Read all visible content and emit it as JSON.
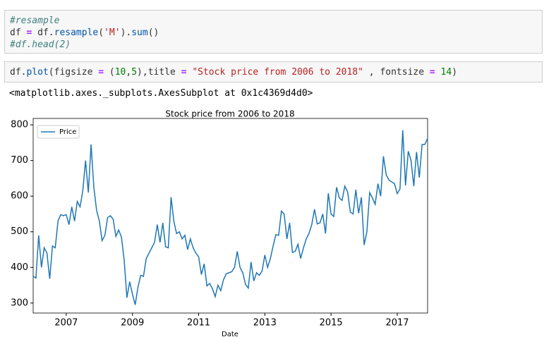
{
  "cells": [
    {
      "lines": [
        [
          {
            "t": "#resample",
            "c": "comment"
          }
        ],
        [
          {
            "t": "df ",
            "c": "plain"
          },
          {
            "t": "=",
            "c": "op"
          },
          {
            "t": " df.",
            "c": "plain"
          },
          {
            "t": "resample",
            "c": "func"
          },
          {
            "t": "(",
            "c": "plain"
          },
          {
            "t": "'M'",
            "c": "str"
          },
          {
            "t": ").",
            "c": "plain"
          },
          {
            "t": "sum",
            "c": "func"
          },
          {
            "t": "()",
            "c": "plain"
          }
        ],
        [
          {
            "t": "#df.head(2)",
            "c": "comment"
          }
        ]
      ]
    },
    {
      "lines": [
        [
          {
            "t": "df.",
            "c": "plain"
          },
          {
            "t": "plot",
            "c": "func"
          },
          {
            "t": "(figsize ",
            "c": "plain"
          },
          {
            "t": "=",
            "c": "op"
          },
          {
            "t": " (",
            "c": "plain"
          },
          {
            "t": "10",
            "c": "num"
          },
          {
            "t": ",",
            "c": "plain"
          },
          {
            "t": "5",
            "c": "num"
          },
          {
            "t": "),title ",
            "c": "plain"
          },
          {
            "t": "=",
            "c": "op"
          },
          {
            "t": " ",
            "c": "plain"
          },
          {
            "t": "\"Stock price from 2006 to 2018\"",
            "c": "str"
          },
          {
            "t": " , fontsize ",
            "c": "plain"
          },
          {
            "t": "=",
            "c": "op"
          },
          {
            "t": " ",
            "c": "plain"
          },
          {
            "t": "14",
            "c": "num"
          },
          {
            "t": ")",
            "c": "plain"
          }
        ]
      ]
    }
  ],
  "output": "<matplotlib.axes._subplots.AxesSubplot at 0x1c4369d4d0>",
  "chart_data": {
    "type": "line",
    "title": "Stock price from 2006 to 2018",
    "x_label": "Date",
    "xlim": [
      2006,
      2017.917
    ],
    "xticks": [
      2007,
      2009,
      2011,
      2013,
      2015,
      2017
    ],
    "ylim": [
      272,
      818
    ],
    "yticks": [
      300,
      400,
      500,
      600,
      700,
      800
    ],
    "legend": "upper-left",
    "x": [
      2006.0,
      2006.083,
      2006.167,
      2006.25,
      2006.333,
      2006.417,
      2006.5,
      2006.583,
      2006.667,
      2006.75,
      2006.833,
      2006.917,
      2007.0,
      2007.083,
      2007.167,
      2007.25,
      2007.333,
      2007.417,
      2007.5,
      2007.583,
      2007.667,
      2007.75,
      2007.833,
      2007.917,
      2008.0,
      2008.083,
      2008.167,
      2008.25,
      2008.333,
      2008.417,
      2008.5,
      2008.583,
      2008.667,
      2008.75,
      2008.833,
      2008.917,
      2009.0,
      2009.083,
      2009.167,
      2009.25,
      2009.333,
      2009.417,
      2009.5,
      2009.583,
      2009.667,
      2009.75,
      2009.833,
      2009.917,
      2010.0,
      2010.083,
      2010.167,
      2010.25,
      2010.333,
      2010.417,
      2010.5,
      2010.583,
      2010.667,
      2010.75,
      2010.833,
      2010.917,
      2011.0,
      2011.083,
      2011.167,
      2011.25,
      2011.333,
      2011.417,
      2011.5,
      2011.583,
      2011.667,
      2011.75,
      2011.833,
      2011.917,
      2012.0,
      2012.083,
      2012.167,
      2012.25,
      2012.333,
      2012.417,
      2012.5,
      2012.583,
      2012.667,
      2012.75,
      2012.833,
      2012.917,
      2013.0,
      2013.083,
      2013.167,
      2013.25,
      2013.333,
      2013.417,
      2013.5,
      2013.583,
      2013.667,
      2013.75,
      2013.833,
      2013.917,
      2014.0,
      2014.083,
      2014.167,
      2014.25,
      2014.333,
      2014.417,
      2014.5,
      2014.583,
      2014.667,
      2014.75,
      2014.833,
      2014.917,
      2015.0,
      2015.083,
      2015.167,
      2015.25,
      2015.333,
      2015.417,
      2015.5,
      2015.583,
      2015.667,
      2015.75,
      2015.833,
      2015.917,
      2016.0,
      2016.083,
      2016.167,
      2016.25,
      2016.333,
      2016.417,
      2016.5,
      2016.583,
      2016.667,
      2016.75,
      2016.833,
      2016.917,
      2017.0,
      2017.083,
      2017.167,
      2017.25,
      2017.333,
      2017.417,
      2017.5,
      2017.583,
      2017.667,
      2017.75,
      2017.833,
      2017.917
    ],
    "series": [
      {
        "name": "Price",
        "color": "#1f77b4",
        "values": [
          375,
          370,
          490,
          400,
          455,
          440,
          368,
          460,
          455,
          530,
          548,
          545,
          548,
          520,
          570,
          530,
          585,
          570,
          615,
          700,
          610,
          745,
          625,
          560,
          530,
          475,
          490,
          540,
          545,
          535,
          487,
          505,
          485,
          420,
          315,
          360,
          325,
          295,
          345,
          378,
          375,
          425,
          440,
          455,
          470,
          520,
          470,
          525,
          458,
          455,
          597,
          530,
          495,
          500,
          480,
          490,
          450,
          480,
          455,
          440,
          430,
          380,
          410,
          348,
          355,
          340,
          318,
          350,
          335,
          365,
          382,
          385,
          388,
          400,
          445,
          400,
          385,
          352,
          342,
          415,
          362,
          385,
          378,
          390,
          435,
          400,
          425,
          460,
          492,
          490,
          558,
          550,
          480,
          525,
          442,
          445,
          465,
          425,
          455,
          480,
          495,
          520,
          563,
          522,
          525,
          550,
          495,
          608,
          550,
          543,
          625,
          595,
          588,
          628,
          612,
          555,
          550,
          618,
          552,
          597,
          463,
          500,
          610,
          595,
          577,
          635,
          600,
          712,
          660,
          645,
          640,
          635,
          607,
          620,
          785,
          630,
          726,
          700,
          628,
          724,
          652,
          745,
          745,
          762
        ]
      }
    ]
  }
}
